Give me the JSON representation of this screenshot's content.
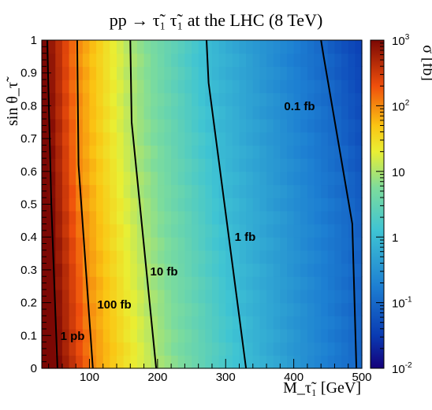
{
  "chart_data": {
    "type": "heatmap",
    "title": "pp → τ̃₁ τ̃₁ at the LHC (8 TeV)",
    "xlabel": "M_τ̃₁ [GeV]",
    "ylabel": "sin θ_τ̃",
    "zlabel": "σ [fb]",
    "xlim": [
      30,
      500
    ],
    "ylim": [
      0,
      1
    ],
    "zlim": [
      0.01,
      1000
    ],
    "z_scale": "log",
    "x_ticks": [
      "100",
      "200",
      "300",
      "400",
      "500"
    ],
    "y_ticks": [
      "0",
      "0.1",
      "0.2",
      "0.3",
      "0.4",
      "0.5",
      "0.6",
      "0.7",
      "0.8",
      "0.9",
      "1"
    ],
    "z_ticks": [
      {
        "base": "10",
        "exp": "-2"
      },
      {
        "base": "10",
        "exp": "-1"
      },
      {
        "base": "1",
        "exp": ""
      },
      {
        "base": "10",
        "exp": ""
      },
      {
        "base": "10",
        "exp": "2"
      },
      {
        "base": "10",
        "exp": "3"
      }
    ],
    "contours": [
      {
        "label": "1 pb",
        "level_fb": 1000,
        "points": [
          [
            53,
            0.0
          ],
          [
            44,
            0.5
          ],
          [
            38,
            1.0
          ]
        ]
      },
      {
        "label": "100 fb",
        "level_fb": 100,
        "points": [
          [
            105,
            0.0
          ],
          [
            84,
            0.62
          ],
          [
            82,
            1.0
          ]
        ]
      },
      {
        "label": "10 fb",
        "level_fb": 10,
        "points": [
          [
            198,
            0.0
          ],
          [
            162,
            0.75
          ],
          [
            160,
            1.0
          ]
        ]
      },
      {
        "label": "1 fb",
        "level_fb": 1,
        "points": [
          [
            330,
            0.0
          ],
          [
            275,
            0.87
          ],
          [
            272,
            1.0
          ]
        ]
      },
      {
        "label": "0.1 fb",
        "level_fb": 0.1,
        "points": [
          [
            492,
            0.0
          ],
          [
            486,
            0.44
          ],
          [
            444,
            0.95
          ],
          [
            440,
            1.0
          ]
        ]
      }
    ]
  }
}
